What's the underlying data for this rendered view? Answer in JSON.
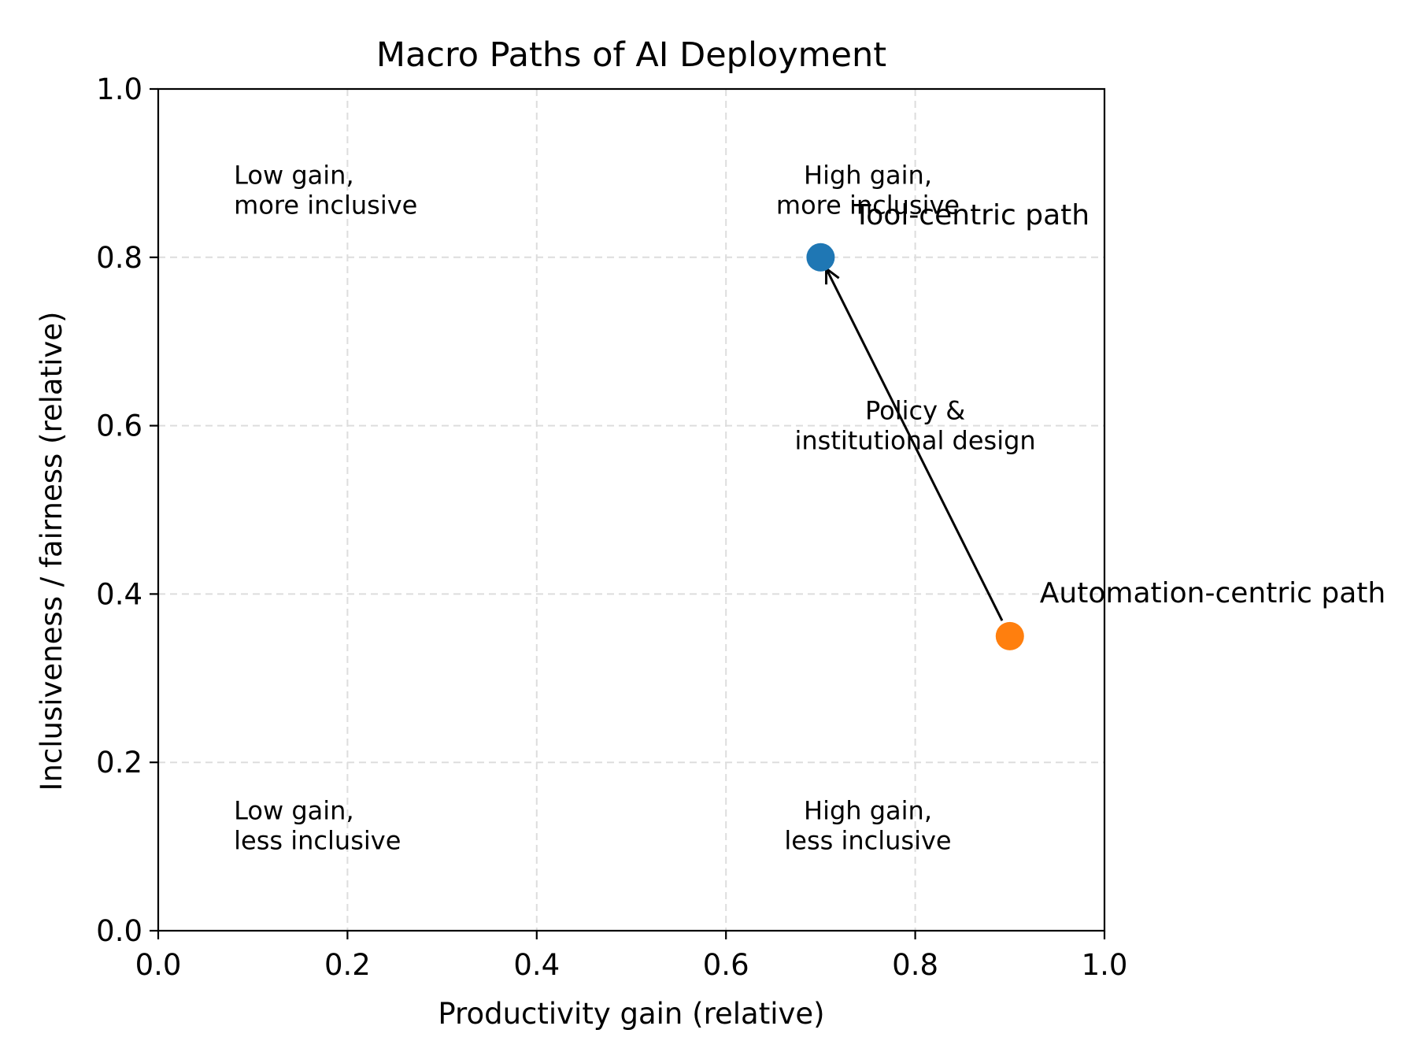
{
  "chart_data": {
    "type": "scatter",
    "title": "Macro Paths of AI Deployment",
    "xlabel": "Productivity gain (relative)",
    "ylabel": "Inclusiveness / fairness (relative)",
    "xlim": [
      0.0,
      1.0
    ],
    "ylim": [
      0.0,
      1.0
    ],
    "xticks": [
      "0.0",
      "0.2",
      "0.4",
      "0.6",
      "0.8",
      "1.0"
    ],
    "yticks": [
      "0.0",
      "0.2",
      "0.4",
      "0.6",
      "0.8",
      "1.0"
    ],
    "xtick_values": [
      0.0,
      0.2,
      0.4,
      0.6,
      0.8,
      1.0
    ],
    "ytick_values": [
      0.0,
      0.2,
      0.4,
      0.6,
      0.8,
      1.0
    ],
    "grid": true,
    "points": [
      {
        "label": "Tool-centric path",
        "x": 0.7,
        "y": 0.8,
        "color": "#1f77b4"
      },
      {
        "label": "Automation-centric path",
        "x": 0.9,
        "y": 0.35,
        "color": "#ff7f0e"
      }
    ],
    "arrow": {
      "from": [
        0.9,
        0.35
      ],
      "to": [
        0.7,
        0.8
      ],
      "color": "#000000"
    },
    "annotations": [
      {
        "lines": [
          "Low gain,",
          "more inclusive"
        ],
        "x": 0.08,
        "y": 0.88,
        "align": "left"
      },
      {
        "lines": [
          "High gain,",
          "more inclusive"
        ],
        "x": 0.75,
        "y": 0.88,
        "align": "center"
      },
      {
        "lines": [
          "Low gain,",
          "less inclusive"
        ],
        "x": 0.08,
        "y": 0.125,
        "align": "left"
      },
      {
        "lines": [
          "High gain,",
          "less inclusive"
        ],
        "x": 0.75,
        "y": 0.125,
        "align": "center"
      },
      {
        "lines": [
          "Policy &",
          "institutional design"
        ],
        "x": 0.8,
        "y": 0.6,
        "align": "center"
      }
    ]
  }
}
